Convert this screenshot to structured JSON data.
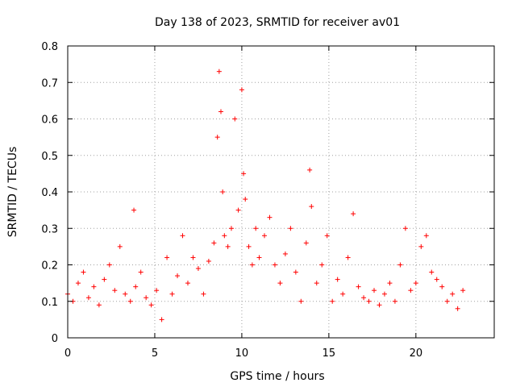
{
  "chart_data": {
    "type": "scatter",
    "title": "Day 138 of 2023, SRMTID for receiver av01",
    "xlabel": "GPS time / hours",
    "ylabel": "SRMTID / TECUs",
    "xlim": [
      0,
      24.5
    ],
    "ylim": [
      0,
      0.8
    ],
    "xticks": [
      0,
      5,
      10,
      15,
      20
    ],
    "xtick_labels": [
      "0",
      "5",
      "10",
      "15",
      "20"
    ],
    "yticks": [
      0,
      0.1,
      0.2,
      0.3,
      0.4,
      0.5,
      0.6,
      0.7,
      0.8
    ],
    "ytick_labels": [
      "0",
      "0.1",
      "0.2",
      "0.3",
      "0.4",
      "0.5",
      "0.6",
      "0.7",
      "0.8"
    ],
    "grid": true,
    "marker": "+",
    "color": "#ff0000",
    "series": [
      {
        "name": "SRMTID",
        "x": [
          0.0,
          0.3,
          0.6,
          0.9,
          1.2,
          1.5,
          1.8,
          2.1,
          2.4,
          2.7,
          3.0,
          3.3,
          3.6,
          3.8,
          3.9,
          4.2,
          4.5,
          4.8,
          5.1,
          5.4,
          5.7,
          6.0,
          6.3,
          6.6,
          6.9,
          7.2,
          7.5,
          7.8,
          8.1,
          8.4,
          8.6,
          8.7,
          8.8,
          8.9,
          9.0,
          9.2,
          9.4,
          9.6,
          9.8,
          10.0,
          10.1,
          10.2,
          10.4,
          10.6,
          10.8,
          11.0,
          11.3,
          11.6,
          11.9,
          12.2,
          12.5,
          12.8,
          13.1,
          13.4,
          13.7,
          13.9,
          14.0,
          14.3,
          14.6,
          14.9,
          15.2,
          15.5,
          15.8,
          16.1,
          16.4,
          16.7,
          17.0,
          17.3,
          17.6,
          17.9,
          18.2,
          18.5,
          18.8,
          19.1,
          19.4,
          19.7,
          20.0,
          20.3,
          20.6,
          20.9,
          21.2,
          21.5,
          21.8,
          22.1,
          22.4,
          22.7
        ],
        "y": [
          0.12,
          0.1,
          0.15,
          0.18,
          0.11,
          0.14,
          0.09,
          0.16,
          0.2,
          0.13,
          0.25,
          0.12,
          0.1,
          0.35,
          0.14,
          0.18,
          0.11,
          0.09,
          0.13,
          0.05,
          0.22,
          0.12,
          0.17,
          0.28,
          0.15,
          0.22,
          0.19,
          0.12,
          0.21,
          0.26,
          0.55,
          0.73,
          0.62,
          0.4,
          0.28,
          0.25,
          0.3,
          0.6,
          0.35,
          0.68,
          0.45,
          0.38,
          0.25,
          0.2,
          0.3,
          0.22,
          0.28,
          0.33,
          0.2,
          0.15,
          0.23,
          0.3,
          0.18,
          0.1,
          0.26,
          0.46,
          0.36,
          0.15,
          0.2,
          0.28,
          0.1,
          0.16,
          0.12,
          0.22,
          0.34,
          0.14,
          0.11,
          0.1,
          0.13,
          0.09,
          0.12,
          0.15,
          0.1,
          0.2,
          0.3,
          0.13,
          0.15,
          0.25,
          0.28,
          0.18,
          0.16,
          0.14,
          0.1,
          0.12,
          0.08,
          0.13
        ]
      }
    ]
  }
}
